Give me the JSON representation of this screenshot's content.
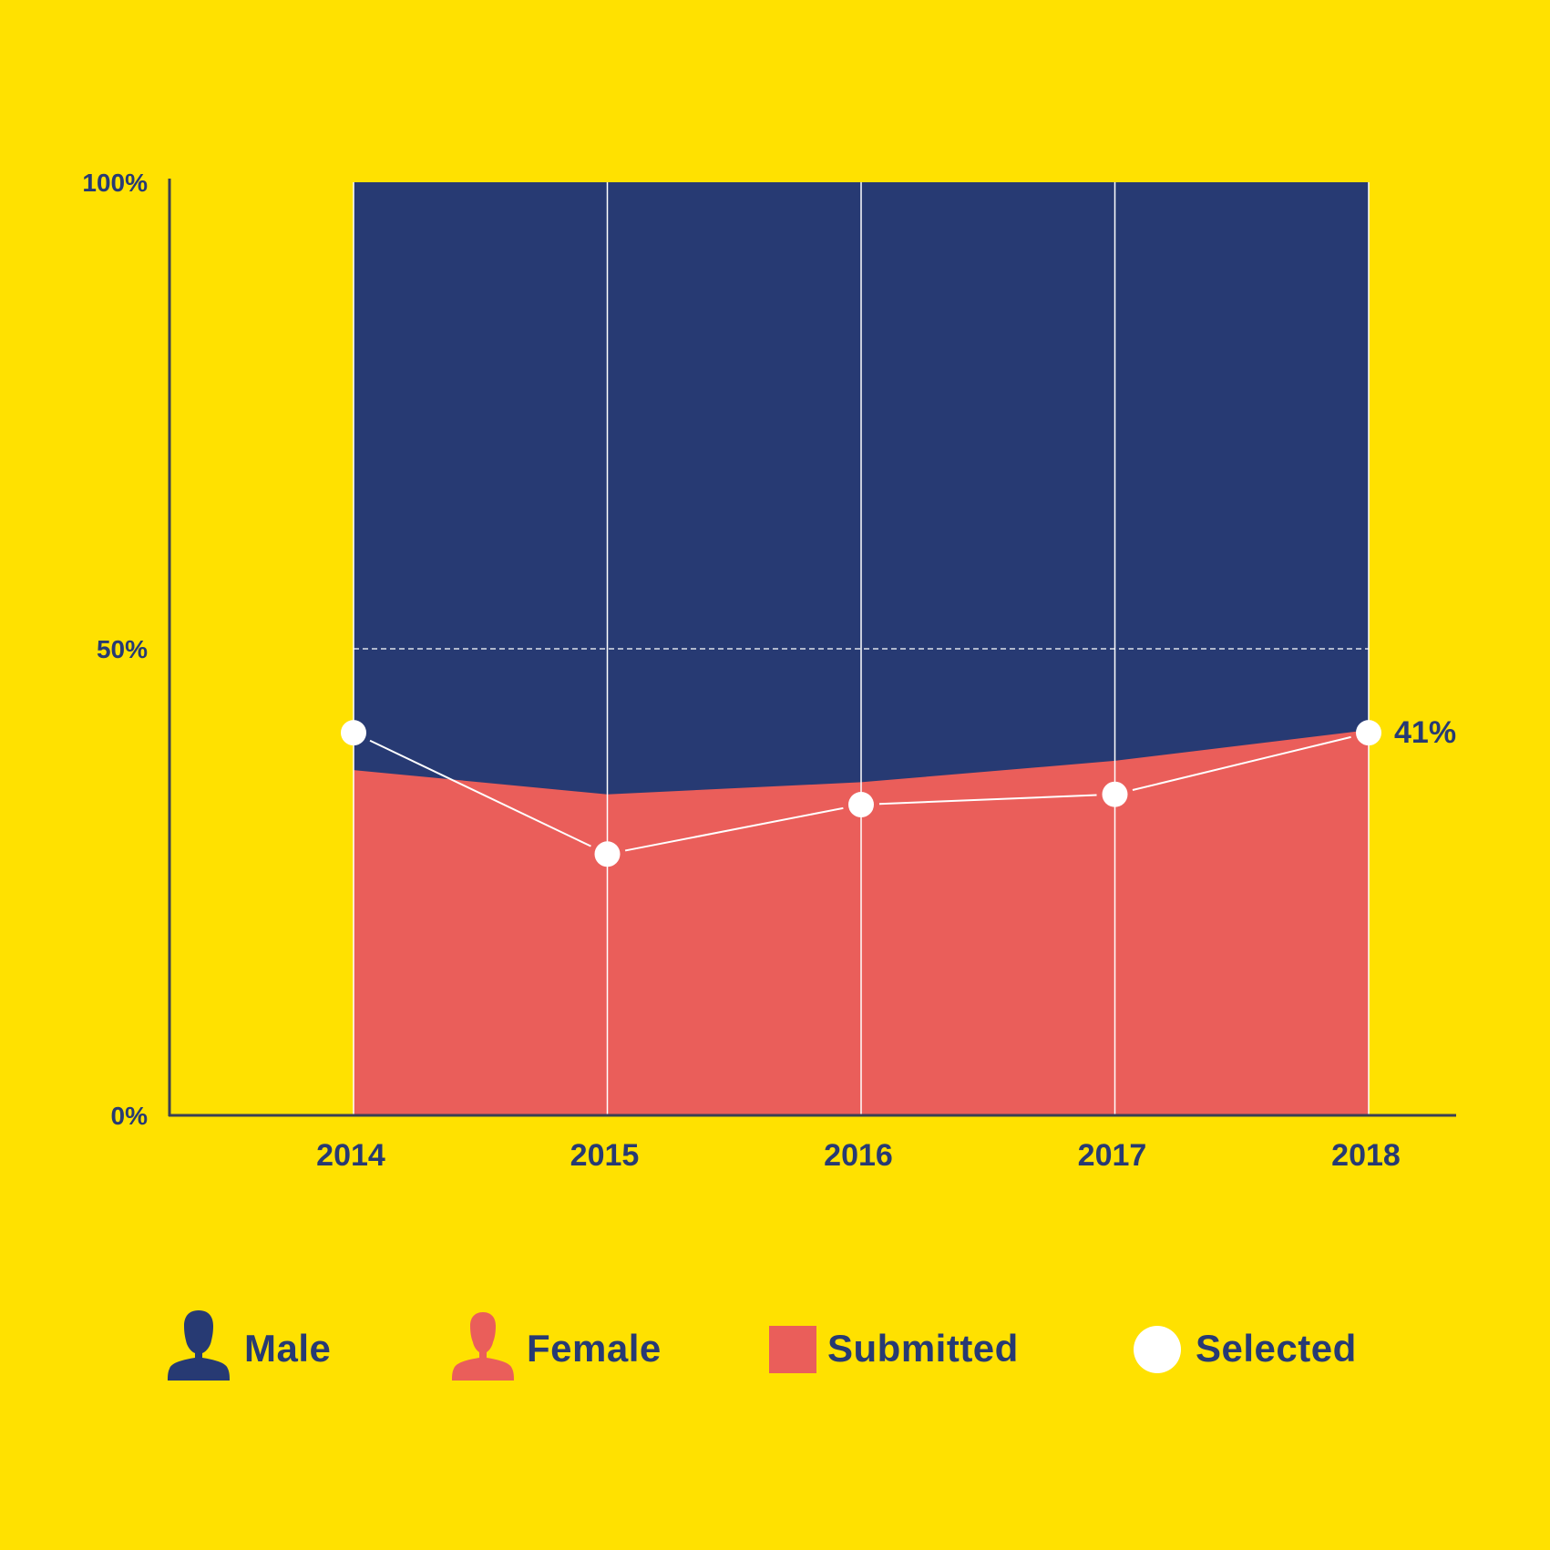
{
  "colors": {
    "background": "#FFE100",
    "male": "#273A73",
    "female": "#EA5E5A",
    "selected": "#FFFFFF",
    "axis": "#3A3F55"
  },
  "chart_data": {
    "type": "area",
    "title": "",
    "xlabel": "",
    "ylabel": "",
    "ylim": [
      0,
      100
    ],
    "y_ticks": [
      "0%",
      "50%",
      "100%"
    ],
    "y_tick_values": [
      0,
      50,
      100
    ],
    "grid": "vertical lines at each year; dashed line at 50%",
    "categories": [
      "2014",
      "2015",
      "2016",
      "2017",
      "2018"
    ],
    "series": [
      {
        "name": "Female",
        "kind": "area",
        "values": [
          37,
          34.4,
          35.7,
          38,
          41.3
        ]
      },
      {
        "name": "Male",
        "kind": "area",
        "values": [
          63,
          65.6,
          64.3,
          62,
          58.7
        ]
      },
      {
        "name": "Selected",
        "kind": "line",
        "values": [
          41,
          28,
          33.3,
          34.4,
          41
        ]
      }
    ],
    "annotations": [
      {
        "category": "2018",
        "text": "41%"
      }
    ],
    "legend": {
      "placement": "bottom",
      "items": [
        {
          "label": "Male",
          "icon": "male-person-icon"
        },
        {
          "label": "Female",
          "icon": "female-person-icon"
        },
        {
          "label": "Submitted",
          "icon": "square-swatch"
        },
        {
          "label": "Selected",
          "icon": "circle-swatch"
        }
      ]
    }
  }
}
